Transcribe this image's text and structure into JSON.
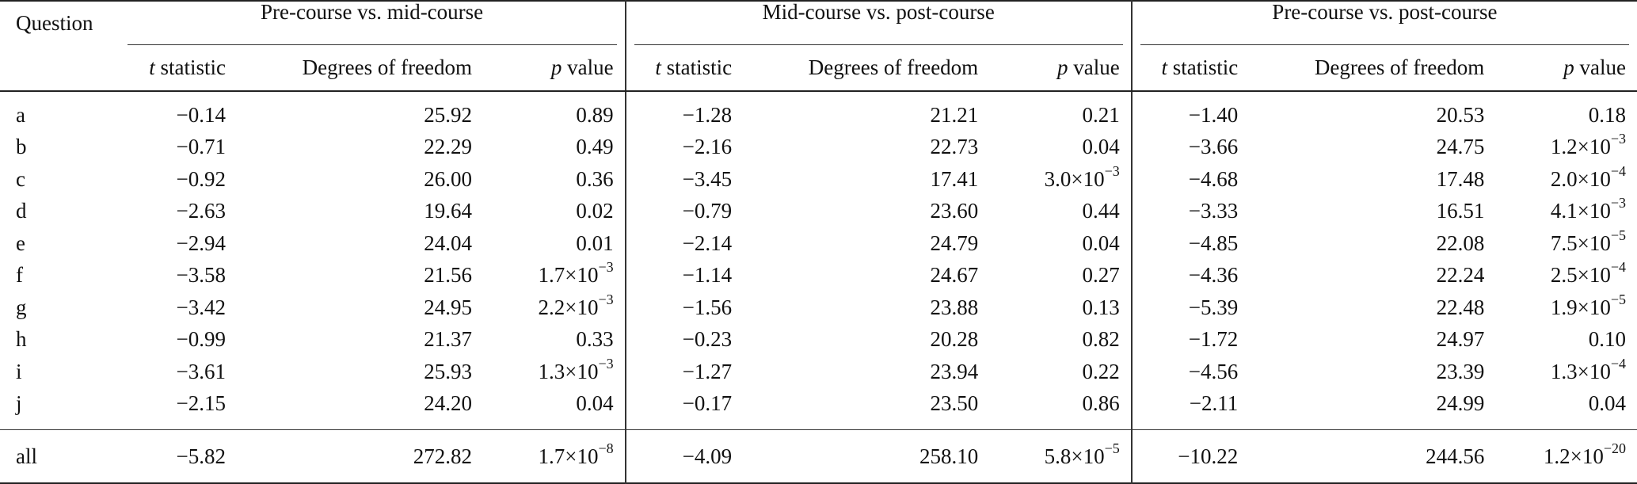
{
  "table": {
    "question_header": "Question",
    "groups": [
      "Pre-course vs. mid-course",
      "Mid-course vs. post-course",
      "Pre-course vs. post-course"
    ],
    "subheaders": {
      "t_italic": "t",
      "t_rest": " statistic",
      "df": "Degrees of freedom",
      "p_italic": "p",
      "p_rest": " value"
    },
    "times": "×",
    "rows": [
      {
        "q": "a",
        "cells": [
          [
            "−0.14",
            "25.92",
            {
              "v": "0.89"
            }
          ],
          [
            "−1.28",
            "21.21",
            {
              "v": "0.21"
            }
          ],
          [
            "−1.40",
            "20.53",
            {
              "v": "0.18"
            }
          ]
        ]
      },
      {
        "q": "b",
        "cells": [
          [
            "−0.71",
            "22.29",
            {
              "v": "0.49"
            }
          ],
          [
            "−2.16",
            "22.73",
            {
              "v": "0.04"
            }
          ],
          [
            "−3.66",
            "24.75",
            {
              "m": "1.2",
              "b": "10",
              "e": "−3"
            }
          ]
        ]
      },
      {
        "q": "c",
        "cells": [
          [
            "−0.92",
            "26.00",
            {
              "v": "0.36"
            }
          ],
          [
            "−3.45",
            "17.41",
            {
              "m": "3.0",
              "b": "10",
              "e": "−3"
            }
          ],
          [
            "−4.68",
            "17.48",
            {
              "m": "2.0",
              "b": "10",
              "e": "−4"
            }
          ]
        ]
      },
      {
        "q": "d",
        "cells": [
          [
            "−2.63",
            "19.64",
            {
              "v": "0.02"
            }
          ],
          [
            "−0.79",
            "23.60",
            {
              "v": "0.44"
            }
          ],
          [
            "−3.33",
            "16.51",
            {
              "m": "4.1",
              "b": "10",
              "e": "−3"
            }
          ]
        ]
      },
      {
        "q": "e",
        "cells": [
          [
            "−2.94",
            "24.04",
            {
              "v": "0.01"
            }
          ],
          [
            "−2.14",
            "24.79",
            {
              "v": "0.04"
            }
          ],
          [
            "−4.85",
            "22.08",
            {
              "m": "7.5",
              "b": "10",
              "e": "−5"
            }
          ]
        ]
      },
      {
        "q": "f",
        "cells": [
          [
            "−3.58",
            "21.56",
            {
              "m": "1.7",
              "b": "10",
              "e": "−3"
            }
          ],
          [
            "−1.14",
            "24.67",
            {
              "v": "0.27"
            }
          ],
          [
            "−4.36",
            "22.24",
            {
              "m": "2.5",
              "b": "10",
              "e": "−4"
            }
          ]
        ]
      },
      {
        "q": "g",
        "cells": [
          [
            "−3.42",
            "24.95",
            {
              "m": "2.2",
              "b": "10",
              "e": "−3"
            }
          ],
          [
            "−1.56",
            "23.88",
            {
              "v": "0.13"
            }
          ],
          [
            "−5.39",
            "22.48",
            {
              "m": "1.9",
              "b": "10",
              "e": "−5"
            }
          ]
        ]
      },
      {
        "q": "h",
        "cells": [
          [
            "−0.99",
            "21.37",
            {
              "v": "0.33"
            }
          ],
          [
            "−0.23",
            "20.28",
            {
              "v": "0.82"
            }
          ],
          [
            "−1.72",
            "24.97",
            {
              "v": "0.10"
            }
          ]
        ]
      },
      {
        "q": "i",
        "cells": [
          [
            "−3.61",
            "25.93",
            {
              "m": "1.3",
              "b": "10",
              "e": "−3"
            }
          ],
          [
            "−1.27",
            "23.94",
            {
              "v": "0.22"
            }
          ],
          [
            "−4.56",
            "23.39",
            {
              "m": "1.3",
              "b": "10",
              "e": "−4"
            }
          ]
        ]
      },
      {
        "q": "j",
        "cells": [
          [
            "−2.15",
            "24.20",
            {
              "v": "0.04"
            }
          ],
          [
            "−0.17",
            "23.50",
            {
              "v": "0.86"
            }
          ],
          [
            "−2.11",
            "24.99",
            {
              "v": "0.04"
            }
          ]
        ]
      }
    ],
    "total": {
      "q": "all",
      "cells": [
        [
          "−5.82",
          "272.82",
          {
            "m": "1.7",
            "b": "10",
            "e": "−8"
          }
        ],
        [
          "−4.09",
          "258.10",
          {
            "m": "5.8",
            "b": "10",
            "e": "−5"
          }
        ],
        [
          "−10.22",
          "244.56",
          {
            "m": "1.2",
            "b": "10",
            "e": "−20"
          }
        ]
      ]
    }
  }
}
